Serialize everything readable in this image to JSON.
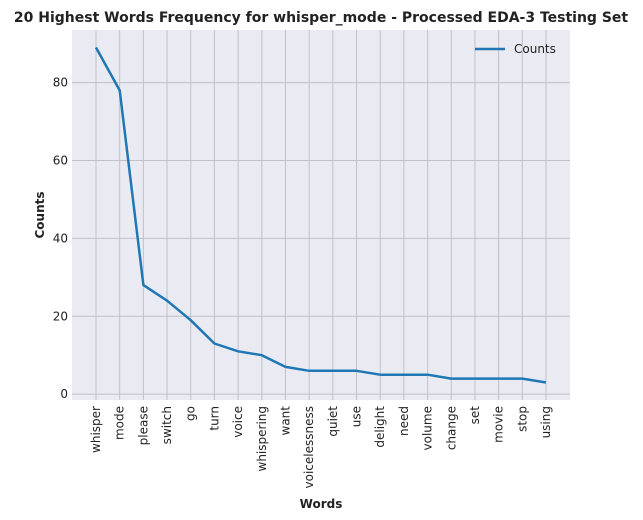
{
  "chart_data": {
    "type": "line",
    "title": "20 Highest Words Frequency for whisper_mode - Processed EDA-3 Testing Set",
    "xlabel": "Words",
    "ylabel": "Counts",
    "categories": [
      "whisper",
      "mode",
      "please",
      "switch",
      "go",
      "turn",
      "voice",
      "whispering",
      "want",
      "voicelessness",
      "quiet",
      "use",
      "delight",
      "need",
      "volume",
      "change",
      "set",
      "movie",
      "stop",
      "using"
    ],
    "series": [
      {
        "name": "Counts",
        "values": [
          89,
          78,
          28,
          24,
          19,
          13,
          11,
          10,
          7,
          6,
          6,
          6,
          5,
          5,
          5,
          4,
          4,
          4,
          4,
          3
        ],
        "color": "#1f77b4"
      }
    ],
    "ylim": [
      -1.5,
      93.5
    ],
    "yticks": [
      0,
      20,
      40,
      60,
      80
    ],
    "grid": true,
    "legend_position": "top-right",
    "style": {
      "plot_background": "#eaeaf2",
      "grid_color": "#c0c0c8"
    }
  }
}
